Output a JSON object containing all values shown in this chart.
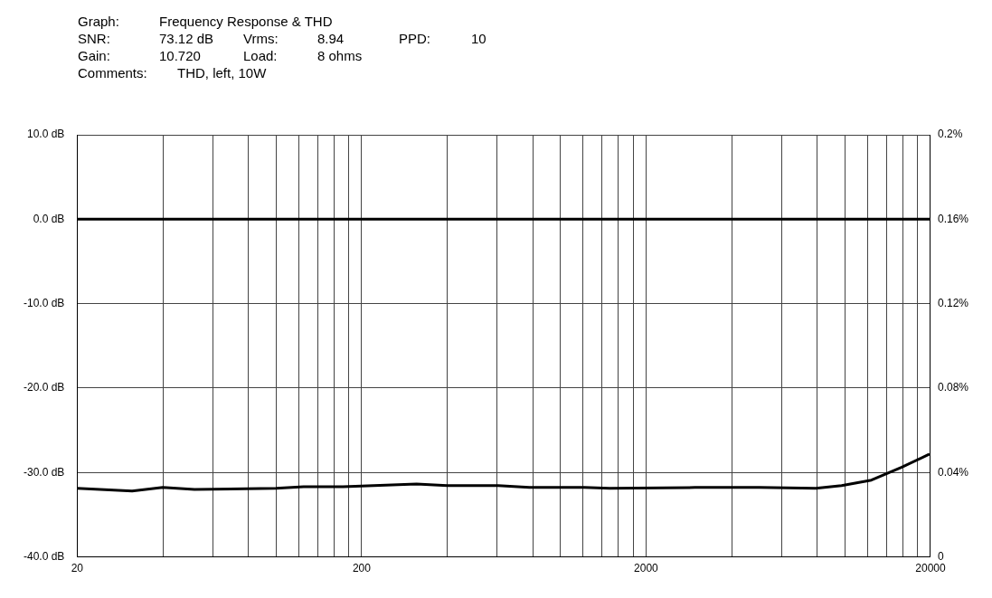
{
  "chart_data": {
    "type": "line",
    "title": "Frequency Response & THD",
    "annotations": [
      "Graph:",
      "SNR:",
      "73.12 dB",
      "Vrms:",
      "8.94",
      "PPD:",
      "10",
      "Gain:",
      "10.720",
      "Load:",
      "8 ohms",
      "Comments:",
      "THD, left, 10W"
    ],
    "log": "x",
    "grid": true,
    "legend": false,
    "marker": "none",
    "line_style": "solid",
    "xlim": [
      20,
      20000
    ],
    "xticks": [
      20,
      {
        "value": 40,
        "label": null
      },
      {
        "value": 60,
        "label": null
      },
      {
        "value": 80,
        "label": null
      },
      {
        "value": 100,
        "label": null
      },
      {
        "value": 120,
        "label": null
      },
      {
        "value": 140,
        "label": null
      },
      {
        "value": 160,
        "label": null
      },
      {
        "value": 180,
        "label": null
      },
      200,
      {
        "value": 400,
        "label": null
      },
      {
        "value": 600,
        "label": null
      },
      {
        "value": 800,
        "label": null
      },
      {
        "value": 1000,
        "label": null
      },
      {
        "value": 1200,
        "label": null
      },
      {
        "value": 1400,
        "label": null
      },
      {
        "value": 1600,
        "label": null
      },
      {
        "value": 1800,
        "label": null
      },
      2000,
      {
        "value": 4000,
        "label": null
      },
      {
        "value": 6000,
        "label": null
      },
      {
        "value": 8000,
        "label": null
      },
      {
        "value": 10000,
        "label": null
      },
      {
        "value": 12000,
        "label": null
      },
      {
        "value": 14000,
        "label": null
      },
      {
        "value": 16000,
        "label": null
      },
      {
        "value": 18000,
        "label": null
      },
      20000
    ],
    "ylim": [
      -40,
      10
    ],
    "yticks": [
      {
        "value": -40,
        "label": "-40.0 dB"
      },
      {
        "value": -30,
        "label": "-30.0 dB"
      },
      {
        "value": -20,
        "label": "-20.0 dB"
      },
      {
        "value": -10,
        "label": "-10.0 dB"
      },
      {
        "value": 0,
        "label": "0.0 dB"
      },
      {
        "value": 10,
        "label": "10.0 dB"
      }
    ],
    "y2lim": [
      0,
      0.2
    ],
    "y2ticks": [
      0,
      {
        "value": 0.04,
        "label": "0.04%"
      },
      {
        "value": 0.08,
        "label": "0.08%"
      },
      {
        "value": 0.12,
        "label": "0.12%"
      },
      {
        "value": 0.16,
        "label": "0.16%"
      },
      {
        "value": 0.2,
        "label": "0.2%"
      }
    ],
    "series": [
      {
        "color": "#000000",
        "x": [
          20,
          20000
        ],
        "values": [
          0,
          0
        ]
      },
      {
        "color": "#000000",
        "axis": "y2",
        "x": [
          20,
          31.2,
          40,
          51.7,
          100,
          125,
          172,
          312,
          400,
          604,
          778,
          1212,
          1490,
          2970,
          5000,
          7900,
          9740,
          12400,
          15800,
          19700
        ],
        "values": [
          0.0325,
          0.0312,
          0.0329,
          0.032,
          0.0325,
          0.0333,
          0.0333,
          0.0346,
          0.0338,
          0.0338,
          0.0329,
          0.0329,
          0.0325,
          0.0329,
          0.0329,
          0.0325,
          0.0338,
          0.0364,
          0.0424,
          0.0485
        ]
      }
    ]
  }
}
